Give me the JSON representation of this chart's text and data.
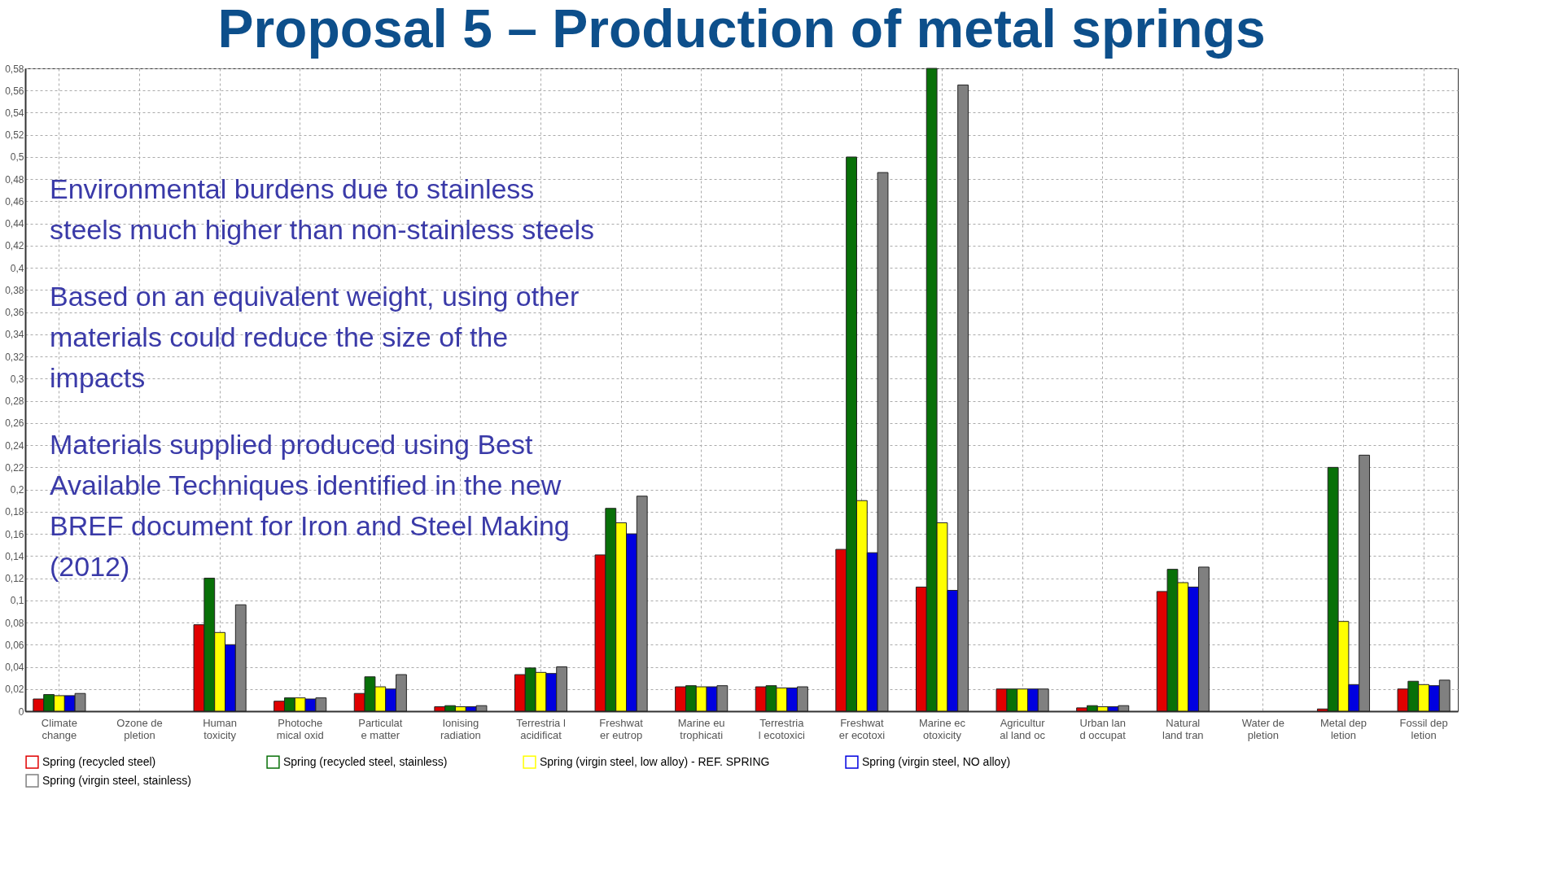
{
  "chart_data": {
    "type": "bar",
    "title": "Proposal 5 – Production of metal springs",
    "annotations": [
      "Environmental burdens due to stainless",
      "steels much higher than non-stainless steels",
      "Based on an equivalent weight, using other",
      "materials could reduce the size of the",
      "impacts",
      "Materials supplied produced using Best",
      "Available Techniques identified in the new",
      "BREF document for Iron and Steel Making",
      "(2012)"
    ],
    "categories": [
      "Climate change",
      "Ozone de pletion",
      "Human toxicity",
      "Photoche mical oxid",
      "Particulat e matter",
      "Ionising radiation",
      "Terrestria l acidificat",
      "Freshwat er eutrop",
      "Marine eu trophicati",
      "Terrestria l ecotoxici",
      "Freshwat er ecotoxi",
      "Marine ec otoxicity",
      "Agricultur al land oc",
      "Urban lan d occupat",
      "Natural land tran",
      "Water de pletion",
      "Metal dep letion",
      "Fossil dep letion"
    ],
    "series": [
      {
        "name": "Spring (recycled steel)",
        "color": "#e00000",
        "values": [
          0.011,
          0,
          0.078,
          0.009,
          0.016,
          0.004,
          0.033,
          0.141,
          0.022,
          0.022,
          0.146,
          0.112,
          0.02,
          0.003,
          0.108,
          0,
          0.002,
          0.02
        ]
      },
      {
        "name": "Spring (recycled steel, stainless)",
        "color": "#087008",
        "values": [
          0.015,
          0,
          0.12,
          0.012,
          0.031,
          0.005,
          0.039,
          0.183,
          0.023,
          0.023,
          0.5,
          0.58,
          0.02,
          0.005,
          0.128,
          0,
          0.22,
          0.027
        ]
      },
      {
        "name": "Spring (virgin steel, low alloy) - REF. SPRING",
        "color": "#ffff00",
        "values": [
          0.014,
          0,
          0.071,
          0.012,
          0.022,
          0.004,
          0.035,
          0.17,
          0.022,
          0.021,
          0.19,
          0.17,
          0.02,
          0.004,
          0.116,
          0,
          0.081,
          0.024
        ]
      },
      {
        "name": "Spring (virgin steel, NO alloy)",
        "color": "#0000e0",
        "values": [
          0.014,
          0,
          0.06,
          0.011,
          0.02,
          0.004,
          0.034,
          0.16,
          0.022,
          0.021,
          0.143,
          0.109,
          0.02,
          0.004,
          0.112,
          0,
          0.024,
          0.023
        ]
      },
      {
        "name": "Spring (virgin steel, stainless)",
        "color": "#808080",
        "values": [
          0.016,
          0,
          0.096,
          0.012,
          0.033,
          0.005,
          0.04,
          0.194,
          0.023,
          0.022,
          0.486,
          0.565,
          0.02,
          0.005,
          0.13,
          0,
          0.231,
          0.028
        ]
      }
    ],
    "ylim": [
      0,
      0.58
    ],
    "yticks": [
      0,
      {
        "value": 0.02,
        "label": "0,02"
      },
      {
        "value": 0.04,
        "label": "0,04"
      },
      {
        "value": 0.06,
        "label": "0,06"
      },
      {
        "value": 0.08,
        "label": "0,08"
      },
      {
        "value": 0.1,
        "label": "0,1"
      },
      {
        "value": 0.12,
        "label": "0,12"
      },
      {
        "value": 0.14,
        "label": "0,14"
      },
      {
        "value": 0.16,
        "label": "0,16"
      },
      {
        "value": 0.18,
        "label": "0,18"
      },
      {
        "value": 0.2,
        "label": "0,2"
      },
      {
        "value": 0.22,
        "label": "0,22"
      },
      {
        "value": 0.24,
        "label": "0,24"
      },
      {
        "value": 0.26,
        "label": "0,26"
      },
      {
        "value": 0.28,
        "label": "0,28"
      },
      {
        "value": 0.3,
        "label": "0,3"
      },
      {
        "value": 0.32,
        "label": "0,32"
      },
      {
        "value": 0.34,
        "label": "0,34"
      },
      {
        "value": 0.36,
        "label": "0,36"
      },
      {
        "value": 0.38,
        "label": "0,38"
      },
      {
        "value": 0.4,
        "label": "0,4"
      },
      {
        "value": 0.42,
        "label": "0,42"
      },
      {
        "value": 0.44,
        "label": "0,44"
      },
      {
        "value": 0.46,
        "label": "0,46"
      },
      {
        "value": 0.48,
        "label": "0,48"
      },
      {
        "value": 0.5,
        "label": "0,5"
      },
      {
        "value": 0.52,
        "label": "0,52"
      },
      {
        "value": 0.54,
        "label": "0,54"
      },
      {
        "value": 0.56,
        "label": "0,56"
      },
      {
        "value": 0.58,
        "label": "0,58"
      }
    ],
    "grid": true,
    "legend": "bottom"
  }
}
